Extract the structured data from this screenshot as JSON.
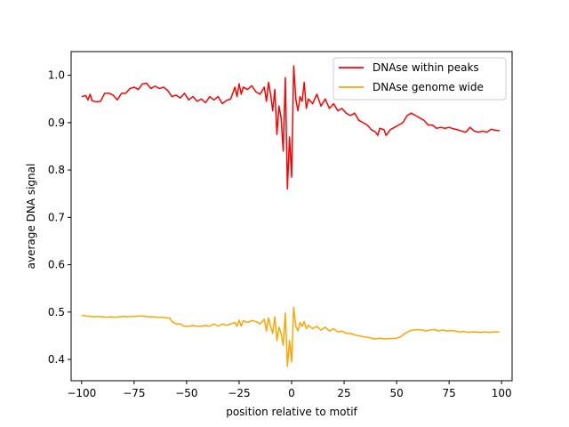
{
  "chart_data": {
    "type": "line",
    "title": "",
    "xlabel": "position relative to motif",
    "ylabel": "average DNA signal",
    "xlim": [
      -105,
      105
    ],
    "ylim": [
      0.355,
      1.05
    ],
    "xticks": [
      -100,
      -75,
      -50,
      -25,
      0,
      25,
      50,
      75,
      100
    ],
    "yticks": [
      0.4,
      0.5,
      0.6,
      0.7,
      0.8,
      0.9,
      1.0
    ],
    "xtick_labels": [
      "−100",
      "−75",
      "−50",
      "−25",
      "0",
      "25",
      "50",
      "75",
      "100"
    ],
    "ytick_labels": [
      "0.4",
      "0.5",
      "0.6",
      "0.7",
      "0.8",
      "0.9",
      "1.0"
    ],
    "grid": false,
    "legend_position": "top-right",
    "series": [
      {
        "name": "DNAse within peaks",
        "color": "#ff0000",
        "points": [
          [
            -100,
            0.955
          ],
          [
            -98,
            0.957
          ],
          [
            -97,
            0.948
          ],
          [
            -96,
            0.96
          ],
          [
            -95,
            0.946
          ],
          [
            -93,
            0.944
          ],
          [
            -91,
            0.945
          ],
          [
            -89,
            0.962
          ],
          [
            -87,
            0.962
          ],
          [
            -85,
            0.958
          ],
          [
            -83,
            0.948
          ],
          [
            -81,
            0.962
          ],
          [
            -79,
            0.962
          ],
          [
            -77,
            0.972
          ],
          [
            -75,
            0.975
          ],
          [
            -73,
            0.97
          ],
          [
            -71,
            0.982
          ],
          [
            -69,
            0.983
          ],
          [
            -67,
            0.972
          ],
          [
            -65,
            0.977
          ],
          [
            -63,
            0.972
          ],
          [
            -61,
            0.975
          ],
          [
            -59,
            0.968
          ],
          [
            -57,
            0.955
          ],
          [
            -55,
            0.958
          ],
          [
            -53,
            0.952
          ],
          [
            -51,
            0.962
          ],
          [
            -49,
            0.948
          ],
          [
            -47,
            0.955
          ],
          [
            -45,
            0.945
          ],
          [
            -43,
            0.95
          ],
          [
            -41,
            0.942
          ],
          [
            -39,
            0.955
          ],
          [
            -37,
            0.948
          ],
          [
            -35,
            0.955
          ],
          [
            -33,
            0.94
          ],
          [
            -31,
            0.947
          ],
          [
            -29,
            0.95
          ],
          [
            -27,
            0.975
          ],
          [
            -26,
            0.955
          ],
          [
            -25,
            0.982
          ],
          [
            -24,
            0.96
          ],
          [
            -23,
            0.975
          ],
          [
            -21,
            0.97
          ],
          [
            -19,
            0.978
          ],
          [
            -17,
            0.965
          ],
          [
            -15,
            0.96
          ],
          [
            -13,
            0.975
          ],
          [
            -12,
            0.945
          ],
          [
            -11,
            0.985
          ],
          [
            -10,
            0.96
          ],
          [
            -9,
            0.925
          ],
          [
            -8,
            0.97
          ],
          [
            -7,
            0.875
          ],
          [
            -6,
            0.935
          ],
          [
            -5,
            0.91
          ],
          [
            -4,
            0.84
          ],
          [
            -3,
            0.995
          ],
          [
            -2,
            0.76
          ],
          [
            -1,
            0.87
          ],
          [
            0,
            0.785
          ],
          [
            1,
            1.02
          ],
          [
            2,
            0.95
          ],
          [
            3,
            0.925
          ],
          [
            4,
            0.955
          ],
          [
            5,
            0.945
          ],
          [
            6,
            0.985
          ],
          [
            7,
            0.93
          ],
          [
            8,
            0.95
          ],
          [
            10,
            0.94
          ],
          [
            12,
            0.96
          ],
          [
            14,
            0.935
          ],
          [
            16,
            0.95
          ],
          [
            18,
            0.93
          ],
          [
            20,
            0.94
          ],
          [
            22,
            0.925
          ],
          [
            24,
            0.93
          ],
          [
            26,
            0.92
          ],
          [
            28,
            0.915
          ],
          [
            30,
            0.92
          ],
          [
            32,
            0.905
          ],
          [
            34,
            0.9
          ],
          [
            36,
            0.895
          ],
          [
            38,
            0.885
          ],
          [
            40,
            0.88
          ],
          [
            41,
            0.873
          ],
          [
            42,
            0.888
          ],
          [
            44,
            0.885
          ],
          [
            45,
            0.873
          ],
          [
            47,
            0.885
          ],
          [
            49,
            0.89
          ],
          [
            51,
            0.895
          ],
          [
            53,
            0.9
          ],
          [
            55,
            0.915
          ],
          [
            57,
            0.92
          ],
          [
            59,
            0.915
          ],
          [
            61,
            0.91
          ],
          [
            63,
            0.905
          ],
          [
            65,
            0.895
          ],
          [
            67,
            0.895
          ],
          [
            69,
            0.888
          ],
          [
            71,
            0.89
          ],
          [
            73,
            0.888
          ],
          [
            75,
            0.89
          ],
          [
            77,
            0.887
          ],
          [
            79,
            0.885
          ],
          [
            81,
            0.882
          ],
          [
            83,
            0.88
          ],
          [
            85,
            0.89
          ],
          [
            87,
            0.882
          ],
          [
            89,
            0.88
          ],
          [
            91,
            0.882
          ],
          [
            93,
            0.88
          ],
          [
            95,
            0.886
          ],
          [
            97,
            0.884
          ],
          [
            99,
            0.883
          ]
        ]
      },
      {
        "name": "DNAse genome wide",
        "color": "#ffa500",
        "points": [
          [
            -100,
            0.493
          ],
          [
            -98,
            0.492
          ],
          [
            -96,
            0.491
          ],
          [
            -94,
            0.49
          ],
          [
            -92,
            0.491
          ],
          [
            -90,
            0.49
          ],
          [
            -88,
            0.489
          ],
          [
            -86,
            0.49
          ],
          [
            -84,
            0.489
          ],
          [
            -82,
            0.49
          ],
          [
            -80,
            0.491
          ],
          [
            -78,
            0.49
          ],
          [
            -76,
            0.491
          ],
          [
            -74,
            0.491
          ],
          [
            -72,
            0.492
          ],
          [
            -70,
            0.491
          ],
          [
            -68,
            0.49
          ],
          [
            -66,
            0.49
          ],
          [
            -64,
            0.489
          ],
          [
            -62,
            0.489
          ],
          [
            -60,
            0.488
          ],
          [
            -58,
            0.487
          ],
          [
            -57,
            0.48
          ],
          [
            -55,
            0.475
          ],
          [
            -53,
            0.475
          ],
          [
            -51,
            0.47
          ],
          [
            -49,
            0.47
          ],
          [
            -47,
            0.472
          ],
          [
            -45,
            0.47
          ],
          [
            -43,
            0.47
          ],
          [
            -41,
            0.472
          ],
          [
            -39,
            0.47
          ],
          [
            -37,
            0.475
          ],
          [
            -35,
            0.47
          ],
          [
            -33,
            0.475
          ],
          [
            -31,
            0.472
          ],
          [
            -29,
            0.475
          ],
          [
            -27,
            0.478
          ],
          [
            -26,
            0.47
          ],
          [
            -25,
            0.483
          ],
          [
            -24,
            0.47
          ],
          [
            -23,
            0.482
          ],
          [
            -21,
            0.478
          ],
          [
            -19,
            0.482
          ],
          [
            -17,
            0.48
          ],
          [
            -15,
            0.475
          ],
          [
            -13,
            0.485
          ],
          [
            -12,
            0.46
          ],
          [
            -11,
            0.488
          ],
          [
            -10,
            0.47
          ],
          [
            -9,
            0.455
          ],
          [
            -8,
            0.49
          ],
          [
            -7,
            0.44
          ],
          [
            -6,
            0.468
          ],
          [
            -5,
            0.455
          ],
          [
            -4,
            0.43
          ],
          [
            -3,
            0.498
          ],
          [
            -2,
            0.385
          ],
          [
            -1,
            0.44
          ],
          [
            0,
            0.395
          ],
          [
            1,
            0.51
          ],
          [
            2,
            0.47
          ],
          [
            3,
            0.46
          ],
          [
            4,
            0.478
          ],
          [
            5,
            0.47
          ],
          [
            6,
            0.48
          ],
          [
            7,
            0.465
          ],
          [
            8,
            0.472
          ],
          [
            10,
            0.465
          ],
          [
            12,
            0.47
          ],
          [
            14,
            0.462
          ],
          [
            16,
            0.468
          ],
          [
            18,
            0.46
          ],
          [
            20,
            0.465
          ],
          [
            22,
            0.458
          ],
          [
            24,
            0.46
          ],
          [
            26,
            0.455
          ],
          [
            28,
            0.455
          ],
          [
            30,
            0.452
          ],
          [
            32,
            0.45
          ],
          [
            34,
            0.448
          ],
          [
            36,
            0.447
          ],
          [
            38,
            0.445
          ],
          [
            40,
            0.443
          ],
          [
            42,
            0.445
          ],
          [
            44,
            0.443
          ],
          [
            46,
            0.444
          ],
          [
            48,
            0.444
          ],
          [
            50,
            0.445
          ],
          [
            52,
            0.448
          ],
          [
            54,
            0.455
          ],
          [
            56,
            0.46
          ],
          [
            58,
            0.462
          ],
          [
            60,
            0.463
          ],
          [
            62,
            0.462
          ],
          [
            64,
            0.46
          ],
          [
            66,
            0.462
          ],
          [
            68,
            0.463
          ],
          [
            70,
            0.46
          ],
          [
            72,
            0.462
          ],
          [
            74,
            0.46
          ],
          [
            76,
            0.461
          ],
          [
            78,
            0.46
          ],
          [
            80,
            0.458
          ],
          [
            82,
            0.459
          ],
          [
            84,
            0.457
          ],
          [
            86,
            0.458
          ],
          [
            88,
            0.458
          ],
          [
            90,
            0.457
          ],
          [
            92,
            0.458
          ],
          [
            94,
            0.457
          ],
          [
            96,
            0.458
          ],
          [
            98,
            0.458
          ],
          [
            99,
            0.458
          ]
        ]
      }
    ]
  }
}
